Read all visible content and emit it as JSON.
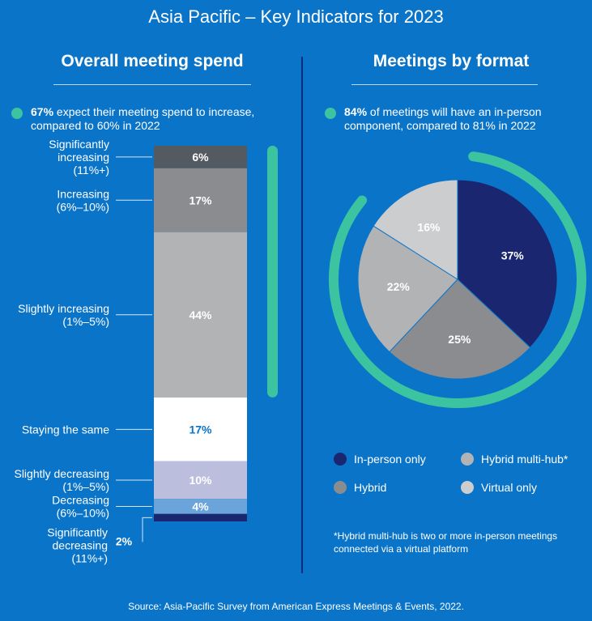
{
  "page": {
    "title": "Asia Pacific – Key Indicators for 2023",
    "source": "Source: Asia-Pacific Survey from American Express Meetings & Events, 2022."
  },
  "left": {
    "title": "Overall meeting spend",
    "note_bold": "67%",
    "note_rest": " expect their meeting spend to increase, compared to 60% in 2022"
  },
  "right": {
    "title": "Meetings by format",
    "note_bold": "84%",
    "note_rest": " of meetings will have an in-person component, compared to 81% in 2022",
    "footnote": "*Hybrid multi-hub is two or more in-person meetings connected via a virtual platform"
  },
  "colors": {
    "background": "#0a74c9",
    "accent_green": "#3cc4a0",
    "divider": "#0b2f7e"
  },
  "chart_data": [
    {
      "type": "bar",
      "stacked": true,
      "orientation": "vertical",
      "categories": [
        [
          "Significantly",
          "increasing",
          "(11%+)"
        ],
        [
          "Increasing",
          "(6%–10%)"
        ],
        [
          "Slightly increasing",
          "(1%–5%)"
        ],
        [
          "Staying the same"
        ],
        [
          "Slightly decreasing",
          "(1%–5%)"
        ],
        [
          "Decreasing",
          "(6%–10%)"
        ],
        [
          "Significantly",
          "decreasing",
          "(11%+)"
        ]
      ],
      "values": [
        6,
        17,
        44,
        17,
        10,
        4,
        2
      ],
      "value_labels": [
        "6%",
        "17%",
        "44%",
        "17%",
        "10%",
        "4%",
        "2%"
      ],
      "segment_colors": [
        "#545a61",
        "#8a8c8f",
        "#b2b3b5",
        "#ffffff",
        "#bcbedd",
        "#6aa4da",
        "#1a2670"
      ],
      "label_colors": [
        "#ffffff",
        "#ffffff",
        "#ffffff",
        "#0a74c9",
        "#ffffff",
        "#ffffff",
        "#ffffff"
      ],
      "bracket": "increase"
    },
    {
      "type": "pie",
      "values": [
        37,
        25,
        22,
        16
      ],
      "value_labels": [
        "37%",
        "25%",
        "22%",
        "16%"
      ],
      "legend": [
        {
          "label": "In-person only",
          "color": "#1a2670"
        },
        {
          "label": "Hybrid multi-hub*",
          "color": "#b2b3b5"
        },
        {
          "label": "Hybrid",
          "color": "#8a8c8f"
        },
        {
          "label": "Virtual only",
          "color": "#cccdcf"
        }
      ],
      "slice_colors": [
        "#1a2670",
        "#8a8c8f",
        "#b2b3b5",
        "#cccdcf"
      ],
      "in_person_component": 84
    }
  ]
}
